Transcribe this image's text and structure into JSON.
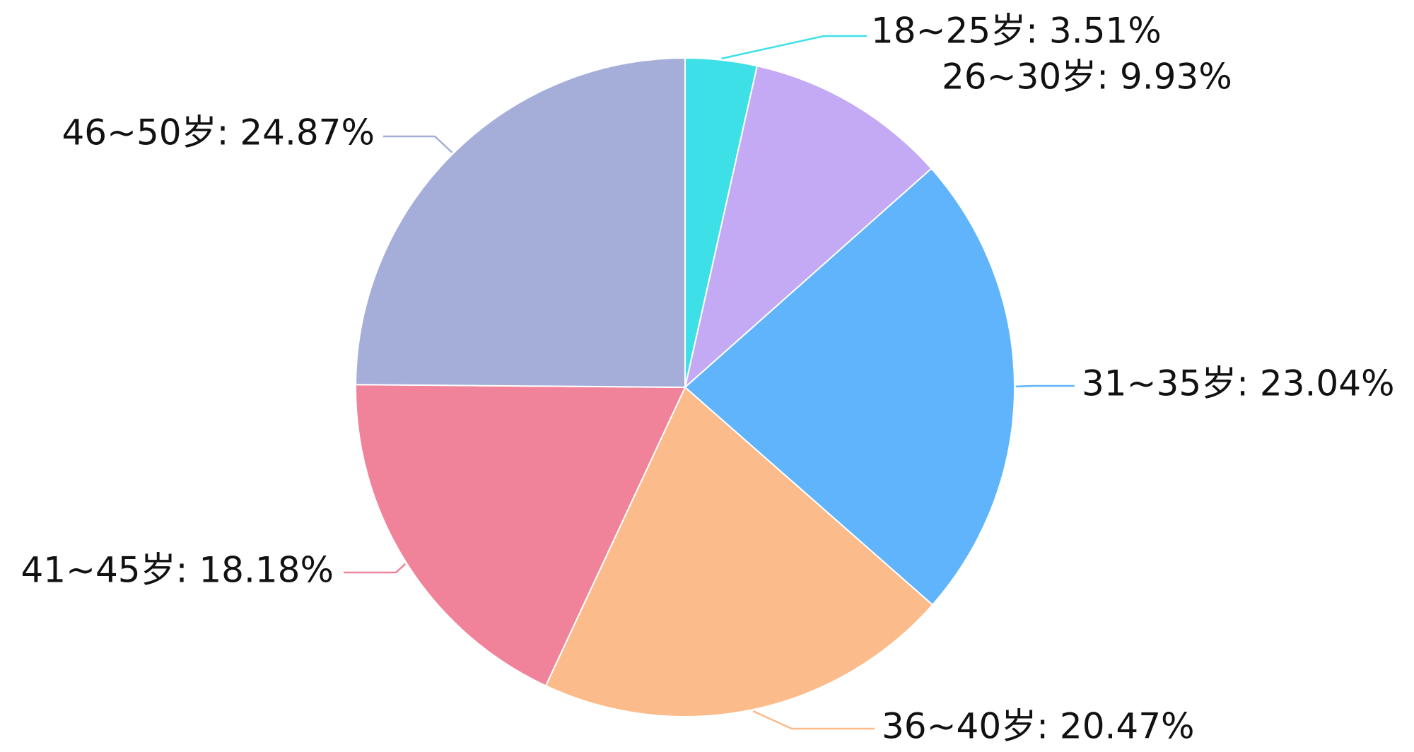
{
  "chart_data": {
    "type": "pie",
    "values": [
      3.51,
      9.93,
      23.04,
      20.47,
      18.18,
      24.87
    ],
    "value_labels": [
      "18~25岁: 3.51%",
      "26~30岁: 9.93%",
      "31~35岁: 23.04%",
      "36~40岁: 20.47%",
      "41~45岁: 18.18%",
      "46~50岁: 24.87%"
    ],
    "colors": [
      "#3ee0e8",
      "#c4a9f4",
      "#5fb4fb",
      "#fbbb8b",
      "#f0829a",
      "#a4aed8"
    ]
  }
}
